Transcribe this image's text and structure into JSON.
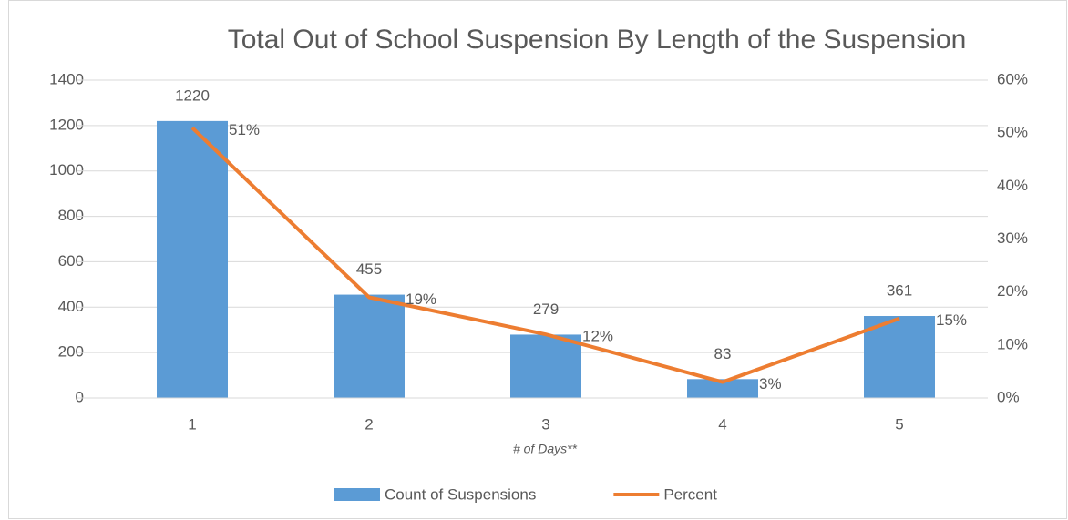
{
  "chart_data": {
    "type": "combo",
    "title": "Total Out of School Suspension By Length of the Suspension",
    "x_label": "# of Days**",
    "categories": [
      "1",
      "2",
      "3",
      "4",
      "5"
    ],
    "series": [
      {
        "name": "Count of Suspensions",
        "type": "bar",
        "color": "#5b9bd5",
        "values": [
          1220,
          455,
          279,
          83,
          361
        ]
      },
      {
        "name": "Percent",
        "type": "line",
        "axis": "y2",
        "color": "#ed7d31",
        "values": [
          51,
          19,
          12,
          3,
          15
        ],
        "value_labels": [
          "51%",
          "19%",
          "12%",
          "3%",
          "15%"
        ]
      }
    ],
    "ylim": [
      0,
      1400
    ],
    "yticks": [
      0,
      200,
      400,
      600,
      800,
      1000,
      1200,
      1400
    ],
    "y2lim": [
      0,
      60
    ],
    "y2ticks": [
      {
        "value": 0,
        "label": "0%"
      },
      {
        "value": 10,
        "label": "10%"
      },
      {
        "value": 20,
        "label": "20%"
      },
      {
        "value": 30,
        "label": "30%"
      },
      {
        "value": 40,
        "label": "40%"
      },
      {
        "value": 50,
        "label": "50%"
      },
      {
        "value": 60,
        "label": "60%"
      }
    ],
    "grid": true,
    "legend": "bottom"
  }
}
